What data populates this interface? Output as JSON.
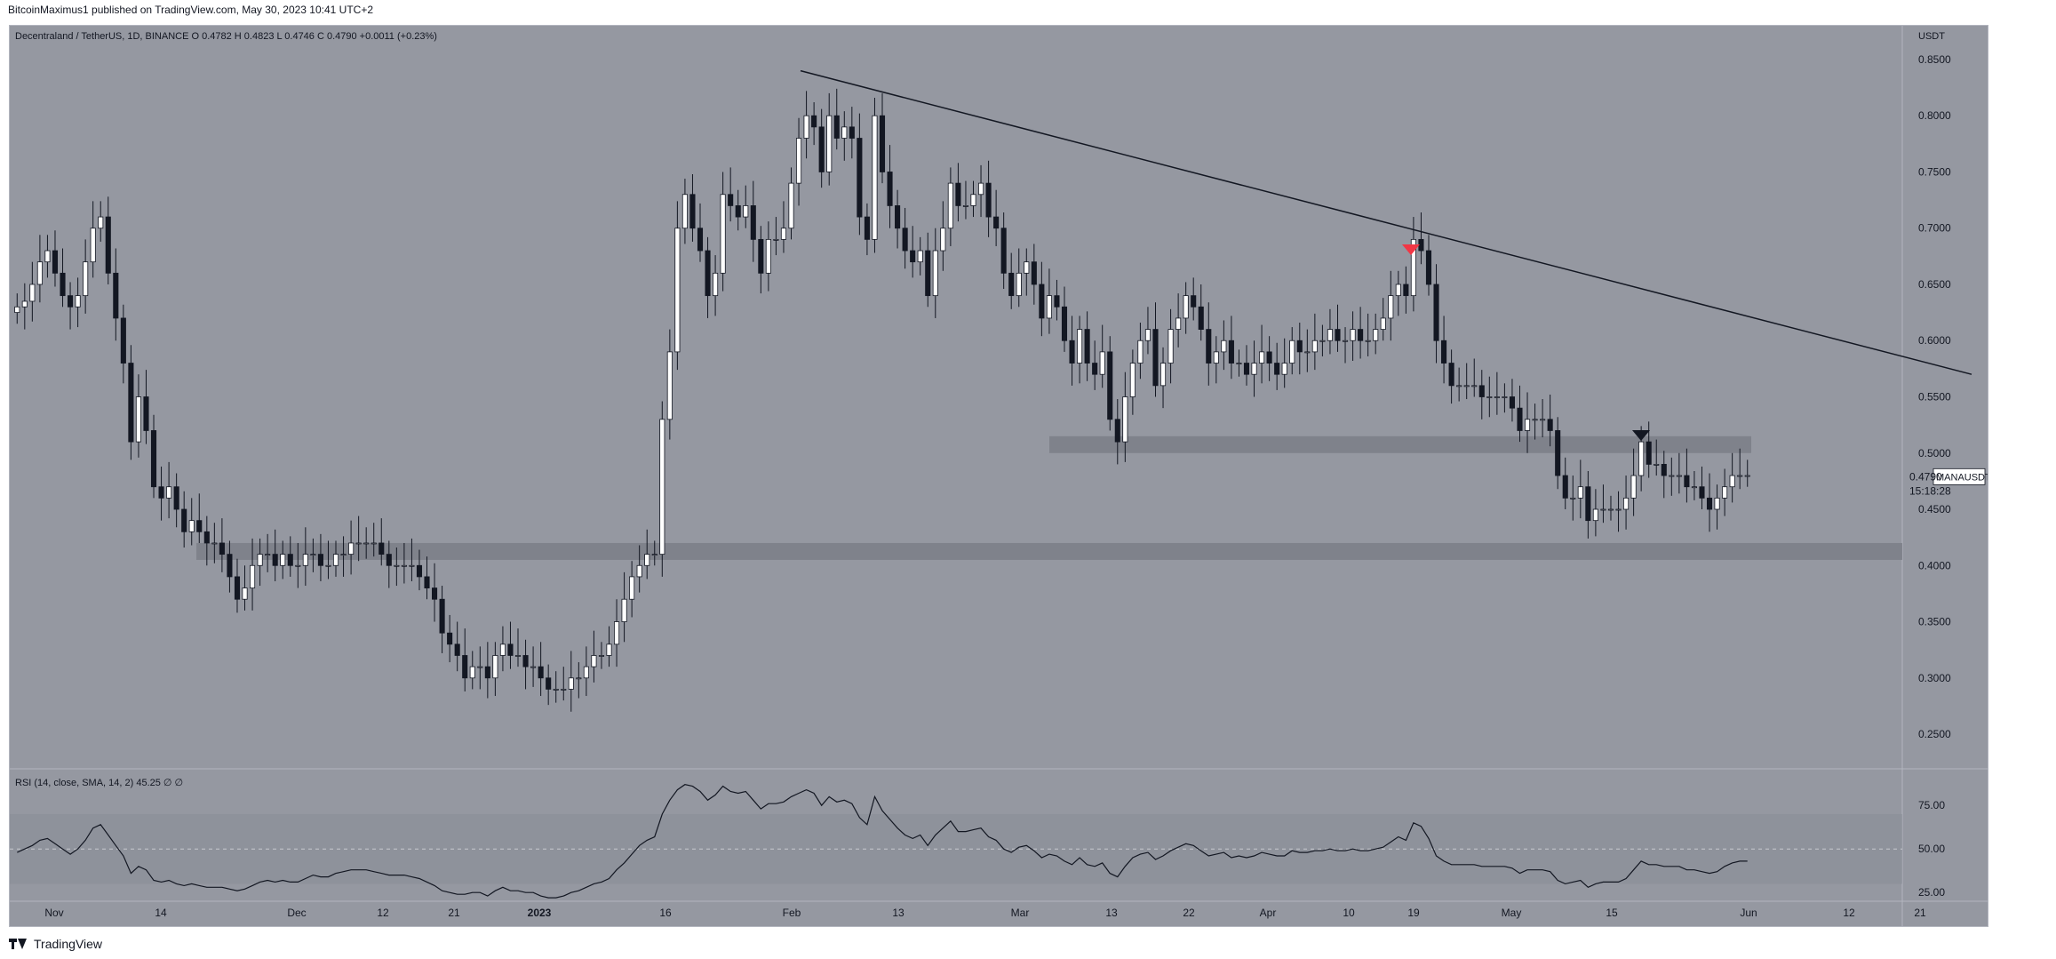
{
  "header": {
    "published_text": "BitcoinMaximus1 published on TradingView.com, May 30, 2023 10:41 UTC+2",
    "symbol_line": "Decentraland / TetherUS, 1D, BINANCE",
    "ohlc": {
      "o_label": "O",
      "o": "0.4782",
      "h_label": "H",
      "h": "0.4823",
      "l_label": "L",
      "l": "0.4746",
      "c_label": "C",
      "c": "0.4790",
      "change": "+0.0011 (+0.23%)"
    }
  },
  "footer": {
    "brand": "TradingView"
  },
  "colors": {
    "background": "#9598a1",
    "bull": "#ffffff",
    "bear": "#131722",
    "zone": "#7b7e87",
    "red_marker": "#f23645",
    "rsi_band": "#8b8e97"
  },
  "chart_data": {
    "type": "candlestick",
    "title": "Decentraland / TetherUS, 1D, BINANCE",
    "y_axis_label": "USDT",
    "ylim": [
      0.22,
      0.88
    ],
    "y_ticks": [
      "0.2500",
      "0.3000",
      "0.3500",
      "0.4000",
      "0.4500",
      "0.5000",
      "0.5500",
      "0.6000",
      "0.6500",
      "0.7000",
      "0.7500",
      "0.8000",
      "0.8500"
    ],
    "x_ticks": [
      "Nov",
      "14",
      "Dec",
      "12",
      "21",
      "2023",
      "16",
      "Feb",
      "13",
      "Mar",
      "13",
      "22",
      "Apr",
      "10",
      "19",
      "May",
      "15",
      "Jun",
      "12",
      "21"
    ],
    "current_price_label": "0.4790",
    "countdown": "15:18:28",
    "symbol_tag": "MANAUSDT",
    "closes": [
      0.63,
      0.635,
      0.65,
      0.67,
      0.68,
      0.66,
      0.64,
      0.63,
      0.64,
      0.67,
      0.7,
      0.71,
      0.66,
      0.62,
      0.58,
      0.51,
      0.55,
      0.52,
      0.47,
      0.46,
      0.47,
      0.45,
      0.43,
      0.44,
      0.43,
      0.42,
      0.42,
      0.41,
      0.39,
      0.37,
      0.38,
      0.4,
      0.41,
      0.41,
      0.4,
      0.41,
      0.4,
      0.4,
      0.41,
      0.41,
      0.4,
      0.4,
      0.41,
      0.41,
      0.42,
      0.42,
      0.42,
      0.42,
      0.41,
      0.4,
      0.4,
      0.4,
      0.4,
      0.39,
      0.38,
      0.37,
      0.34,
      0.33,
      0.32,
      0.3,
      0.31,
      0.31,
      0.3,
      0.32,
      0.33,
      0.32,
      0.32,
      0.31,
      0.31,
      0.3,
      0.29,
      0.29,
      0.29,
      0.3,
      0.3,
      0.31,
      0.32,
      0.32,
      0.33,
      0.35,
      0.37,
      0.39,
      0.4,
      0.41,
      0.41,
      0.53,
      0.59,
      0.7,
      0.73,
      0.7,
      0.68,
      0.64,
      0.66,
      0.73,
      0.72,
      0.71,
      0.72,
      0.69,
      0.66,
      0.69,
      0.69,
      0.7,
      0.74,
      0.78,
      0.8,
      0.79,
      0.75,
      0.8,
      0.78,
      0.79,
      0.78,
      0.71,
      0.69,
      0.8,
      0.75,
      0.72,
      0.7,
      0.68,
      0.67,
      0.68,
      0.64,
      0.68,
      0.7,
      0.74,
      0.72,
      0.72,
      0.73,
      0.74,
      0.71,
      0.7,
      0.66,
      0.64,
      0.66,
      0.67,
      0.65,
      0.62,
      0.64,
      0.63,
      0.6,
      0.58,
      0.61,
      0.58,
      0.57,
      0.59,
      0.53,
      0.51,
      0.55,
      0.58,
      0.6,
      0.61,
      0.56,
      0.58,
      0.61,
      0.62,
      0.64,
      0.63,
      0.61,
      0.58,
      0.59,
      0.6,
      0.58,
      0.58,
      0.57,
      0.58,
      0.59,
      0.58,
      0.57,
      0.58,
      0.6,
      0.59,
      0.59,
      0.6,
      0.6,
      0.61,
      0.6,
      0.6,
      0.61,
      0.6,
      0.6,
      0.61,
      0.62,
      0.64,
      0.65,
      0.64,
      0.69,
      0.68,
      0.65,
      0.6,
      0.58,
      0.56,
      0.56,
      0.56,
      0.56,
      0.55,
      0.55,
      0.55,
      0.55,
      0.54,
      0.52,
      0.53,
      0.53,
      0.53,
      0.52,
      0.48,
      0.46,
      0.46,
      0.47,
      0.44,
      0.45,
      0.45,
      0.45,
      0.45,
      0.46,
      0.48,
      0.51,
      0.49,
      0.49,
      0.48,
      0.48,
      0.48,
      0.47,
      0.47,
      0.46,
      0.45,
      0.46,
      0.47,
      0.48,
      0.48,
      0.48
    ],
    "zones": [
      {
        "from": 0.5,
        "to": 0.515
      },
      {
        "from": 0.405,
        "to": 0.42
      }
    ],
    "trendline": {
      "from": [
        0.84
      ],
      "to": [
        0.57
      ]
    },
    "rsi": {
      "label": "RSI (14, close, SMA, 14, 2)",
      "value": "45.25",
      "extra": "∅ ∅",
      "ylim": [
        20,
        95
      ],
      "ticks": [
        "75.00",
        "50.00",
        "25.00"
      ],
      "values": [
        48,
        50,
        52,
        55,
        56,
        53,
        50,
        47,
        50,
        55,
        62,
        64,
        58,
        52,
        46,
        36,
        40,
        38,
        32,
        31,
        32,
        30,
        29,
        30,
        29,
        28,
        28,
        28,
        27,
        26,
        27,
        29,
        31,
        32,
        31,
        32,
        31,
        31,
        33,
        35,
        34,
        34,
        36,
        37,
        38,
        38,
        38,
        37,
        36,
        35,
        35,
        35,
        34,
        33,
        31,
        29,
        26,
        25,
        24,
        24,
        25,
        25,
        23,
        26,
        28,
        26,
        26,
        25,
        25,
        23,
        22,
        22,
        23,
        25,
        26,
        28,
        30,
        31,
        33,
        38,
        42,
        47,
        52,
        55,
        57,
        70,
        78,
        84,
        87,
        86,
        83,
        78,
        81,
        86,
        83,
        82,
        83,
        78,
        73,
        76,
        76,
        77,
        80,
        82,
        84,
        82,
        75,
        80,
        77,
        78,
        76,
        68,
        64,
        80,
        72,
        67,
        62,
        58,
        56,
        58,
        52,
        58,
        62,
        66,
        60,
        60,
        61,
        62,
        57,
        55,
        50,
        48,
        51,
        52,
        49,
        45,
        47,
        46,
        43,
        41,
        45,
        41,
        40,
        42,
        36,
        34,
        40,
        45,
        47,
        48,
        44,
        46,
        49,
        51,
        53,
        52,
        49,
        46,
        47,
        48,
        45,
        46,
        45,
        46,
        48,
        47,
        46,
        46,
        49,
        48,
        48,
        49,
        49,
        50,
        49,
        49,
        50,
        49,
        49,
        50,
        51,
        54,
        57,
        55,
        65,
        63,
        56,
        46,
        43,
        41,
        41,
        41,
        41,
        40,
        40,
        40,
        40,
        39,
        36,
        38,
        38,
        38,
        37,
        32,
        30,
        31,
        32,
        28,
        30,
        31,
        31,
        31,
        33,
        38,
        43,
        41,
        41,
        40,
        40,
        40,
        38,
        38,
        37,
        36,
        37,
        40,
        42,
        43,
        43
      ]
    }
  }
}
